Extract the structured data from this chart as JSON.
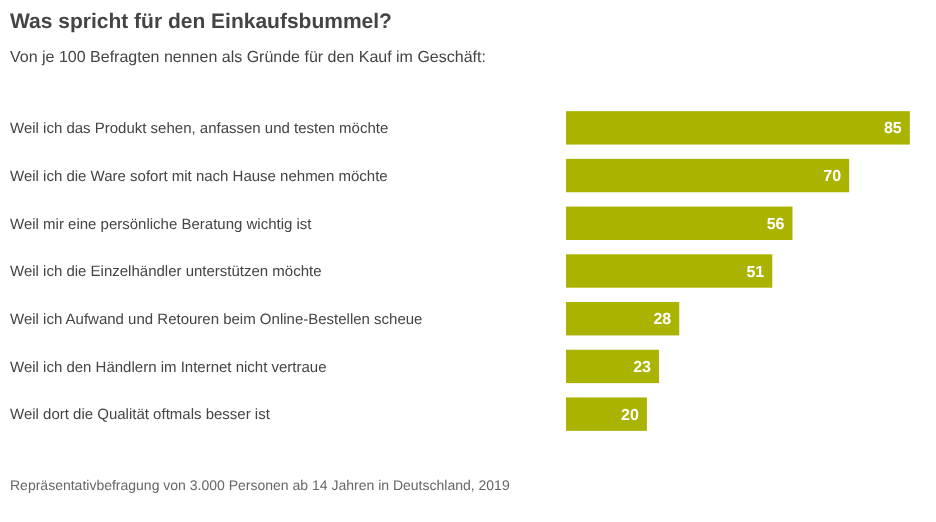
{
  "chart_data": {
    "type": "bar",
    "orientation": "horizontal",
    "title": "Was spricht für den Einkaufsbummel?",
    "subtitle": "Von je 100 Befragten nennen als Gründe für den Kauf im Geschäft:",
    "categories": [
      "Weil ich das Produkt sehen, anfassen und testen möchte",
      "Weil ich die Ware sofort mit nach Hause nehmen möchte",
      "Weil mir eine persönliche Beratung wichtig ist",
      "Weil ich die Einzelhändler unterstützen möchte",
      "Weil ich Aufwand und Retouren beim Online-Bestellen scheue",
      "Weil ich den Händlern im Internet nicht vertraue",
      "Weil dort die Qualität oftmals besser ist"
    ],
    "values": [
      85,
      70,
      56,
      51,
      28,
      23,
      20
    ],
    "color": "#a9b300",
    "data_labels": true,
    "annotations": [
      "Repräsentativbefragung von 3.000 Personen ab 14 Jahren in Deutschland, 2019"
    ]
  }
}
